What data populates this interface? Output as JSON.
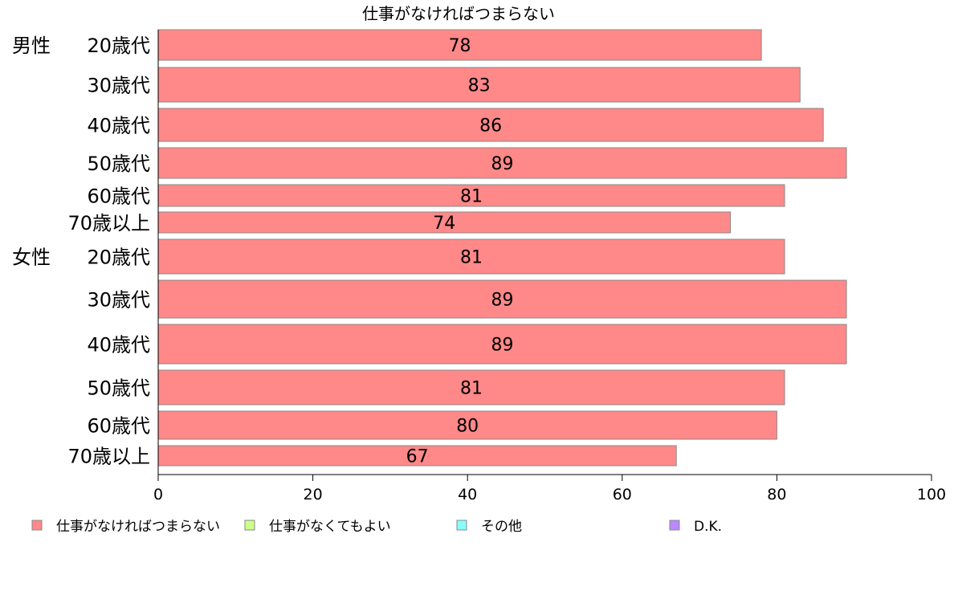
{
  "chart_data": {
    "type": "bar",
    "orientation": "horizontal",
    "title": "仕事がなければつまらない",
    "xlim": [
      0,
      100
    ],
    "x_ticks": [
      "0",
      "20",
      "40",
      "60",
      "80",
      "100"
    ],
    "grid": false,
    "legend_position": "bottom",
    "categories": [
      {
        "group": "男性",
        "label": "20歳代"
      },
      {
        "group": "",
        "label": "30歳代"
      },
      {
        "group": "",
        "label": "40歳代"
      },
      {
        "group": "",
        "label": "50歳代"
      },
      {
        "group": "",
        "label": "60歳代"
      },
      {
        "group": "",
        "label": "70歳以上"
      },
      {
        "group": "女性",
        "label": "20歳代"
      },
      {
        "group": "",
        "label": "30歳代"
      },
      {
        "group": "",
        "label": "40歳代"
      },
      {
        "group": "",
        "label": "50歳代"
      },
      {
        "group": "",
        "label": "60歳代"
      },
      {
        "group": "",
        "label": "70歳以上"
      }
    ],
    "series": [
      {
        "name": "仕事がなければつまらない",
        "color": "#ff8888",
        "values": [
          78,
          83,
          86,
          89,
          81,
          74,
          81,
          89,
          89,
          81,
          80,
          67
        ],
        "labels": [
          "78",
          "83",
          "86",
          "89",
          "81",
          "74",
          "81",
          "89",
          "89",
          "81",
          "80",
          "67"
        ]
      }
    ],
    "legend": [
      {
        "name": "仕事がなければつまらない",
        "color": "#ff8888"
      },
      {
        "name": "仕事がなくてもよい",
        "color": "#ccff88"
      },
      {
        "name": "その他",
        "color": "#88ffff"
      },
      {
        "name": "D.K.",
        "color": "#bb88ff"
      }
    ]
  }
}
